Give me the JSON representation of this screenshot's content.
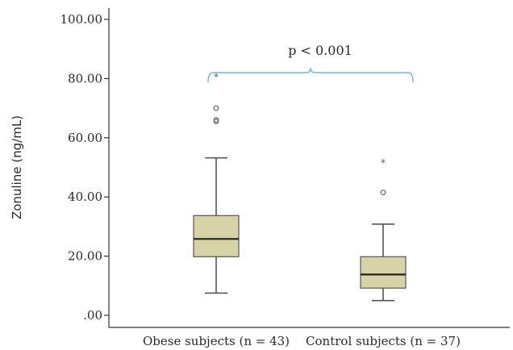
{
  "chart_data": {
    "type": "box",
    "ylabel": "Zonuline (ng/mL)",
    "xlabel": "",
    "ylim": [
      0,
      100
    ],
    "yticks": [
      0,
      20,
      40,
      60,
      80,
      100
    ],
    "ytick_labels": [
      ".00",
      "20.00",
      "40.00",
      "60.00",
      "80.00",
      "100.00"
    ],
    "categories": [
      "Obese subjects (n = 43)",
      "Control subjects (n = 37)"
    ],
    "boxes": [
      {
        "category": "Obese subjects (n = 43)",
        "whisker_low": 7.5,
        "q1": 19.8,
        "median": 25.8,
        "q3": 33.7,
        "whisker_high": 53.2,
        "outliers": [
          65.5,
          66.0,
          70.0
        ],
        "extremes": [
          81.0
        ]
      },
      {
        "category": "Control subjects (n = 37)",
        "whisker_low": 5.0,
        "q1": 9.2,
        "median": 13.8,
        "q3": 19.8,
        "whisker_high": 30.8,
        "outliers": [
          41.5
        ],
        "extremes": [
          52.0
        ]
      }
    ],
    "annotation": {
      "text": "p < 0.001",
      "y": 82
    },
    "grid": false,
    "legend": "none"
  },
  "colors": {
    "box_fill": "#d8d3a6",
    "box_stroke": "#555555",
    "axis": "#333333",
    "bracket": "#6aaee0"
  }
}
